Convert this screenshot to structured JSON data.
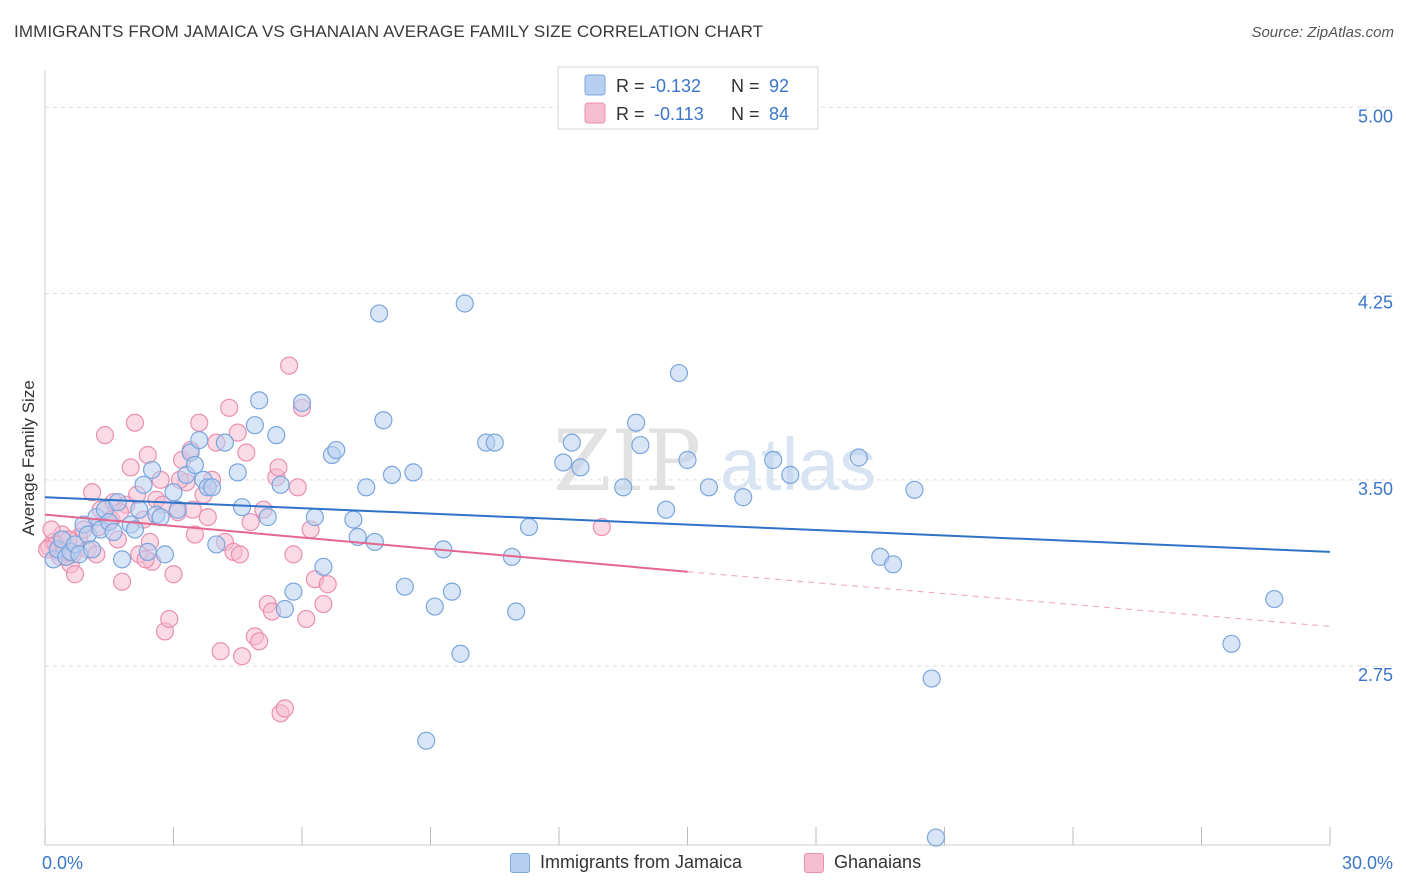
{
  "title": "IMMIGRANTS FROM JAMAICA VS GHANAIAN AVERAGE FAMILY SIZE CORRELATION CHART",
  "source": "Source: ZipAtlas.com",
  "watermark": {
    "zip": "ZIP",
    "atlas": "atlas"
  },
  "legend": {
    "rows": [
      {
        "r_label": "R =",
        "r_value": "-0.132",
        "n_label": "N =",
        "n_value": "92"
      },
      {
        "r_label": "R =",
        "r_value": "-0.113",
        "n_label": "N =",
        "n_value": "84"
      }
    ]
  },
  "colors": {
    "blue_fill": "#b8d0f0",
    "blue_stroke": "#7aa6dd",
    "blue_line": "#2f72c8",
    "pink_fill": "#f6bcd0",
    "pink_stroke": "#ea8fb0",
    "pink_line": "#e2668f",
    "axis_blue_text": "#3b76c9",
    "grid": "#dddddd"
  },
  "chart_data": {
    "type": "scatter",
    "title": "IMMIGRANTS FROM JAMAICA VS GHANAIAN AVERAGE FAMILY SIZE CORRELATION CHART",
    "xlabel": "",
    "ylabel": "Average Family Size",
    "xlim": [
      0,
      30
    ],
    "ylim": [
      2.03,
      5.15
    ],
    "x_tick_labels": [
      "0.0%",
      "30.0%"
    ],
    "y_ticks": [
      2.75,
      3.5,
      4.25,
      5.0
    ],
    "y_tick_labels": [
      "2.75",
      "3.50",
      "4.25",
      "5.00"
    ],
    "grid": true,
    "legend_position": "top-center",
    "series": [
      {
        "name": "Immigrants from Jamaica",
        "color": "#7aa6dd",
        "trend": {
          "x": [
            0,
            30
          ],
          "y": [
            3.43,
            3.21
          ]
        },
        "points": [
          [
            0.2,
            3.18
          ],
          [
            0.3,
            3.22
          ],
          [
            0.4,
            3.26
          ],
          [
            0.5,
            3.19
          ],
          [
            0.6,
            3.21
          ],
          [
            0.7,
            3.24
          ],
          [
            0.8,
            3.2
          ],
          [
            0.9,
            3.32
          ],
          [
            1.0,
            3.28
          ],
          [
            1.1,
            3.22
          ],
          [
            1.2,
            3.35
          ],
          [
            1.3,
            3.3
          ],
          [
            1.4,
            3.38
          ],
          [
            1.5,
            3.33
          ],
          [
            1.7,
            3.41
          ],
          [
            1.8,
            3.18
          ],
          [
            2.0,
            3.32
          ],
          [
            2.2,
            3.38
          ],
          [
            2.3,
            3.48
          ],
          [
            2.4,
            3.21
          ],
          [
            2.5,
            3.54
          ],
          [
            2.6,
            3.36
          ],
          [
            2.7,
            3.35
          ],
          [
            2.8,
            3.2
          ],
          [
            3.0,
            3.45
          ],
          [
            3.1,
            3.38
          ],
          [
            3.3,
            3.52
          ],
          [
            3.4,
            3.61
          ],
          [
            3.5,
            3.56
          ],
          [
            3.6,
            3.66
          ],
          [
            3.7,
            3.5
          ],
          [
            3.8,
            3.47
          ],
          [
            4.0,
            3.24
          ],
          [
            4.2,
            3.65
          ],
          [
            4.5,
            3.53
          ],
          [
            4.6,
            3.39
          ],
          [
            4.9,
            3.72
          ],
          [
            5.0,
            3.82
          ],
          [
            5.2,
            3.35
          ],
          [
            5.4,
            3.68
          ],
          [
            5.5,
            3.48
          ],
          [
            5.6,
            2.98
          ],
          [
            5.8,
            3.05
          ],
          [
            6.0,
            3.81
          ],
          [
            6.3,
            3.35
          ],
          [
            6.5,
            3.15
          ],
          [
            6.7,
            3.6
          ],
          [
            6.8,
            3.62
          ],
          [
            7.2,
            3.34
          ],
          [
            7.3,
            3.27
          ],
          [
            7.5,
            3.47
          ],
          [
            7.7,
            3.25
          ],
          [
            7.8,
            4.17
          ],
          [
            7.9,
            3.74
          ],
          [
            8.1,
            3.52
          ],
          [
            8.4,
            3.07
          ],
          [
            8.6,
            3.53
          ],
          [
            8.9,
            2.45
          ],
          [
            9.1,
            2.99
          ],
          [
            9.3,
            3.22
          ],
          [
            9.5,
            3.05
          ],
          [
            9.7,
            2.8
          ],
          [
            9.8,
            4.21
          ],
          [
            10.3,
            3.65
          ],
          [
            10.5,
            3.65
          ],
          [
            10.9,
            3.19
          ],
          [
            11.0,
            2.97
          ],
          [
            11.3,
            3.31
          ],
          [
            12.1,
            3.57
          ],
          [
            12.3,
            3.65
          ],
          [
            12.5,
            3.55
          ],
          [
            13.5,
            3.47
          ],
          [
            13.8,
            3.73
          ],
          [
            13.9,
            3.64
          ],
          [
            14.5,
            3.38
          ],
          [
            14.8,
            3.93
          ],
          [
            15.0,
            3.58
          ],
          [
            15.5,
            3.47
          ],
          [
            16.3,
            3.43
          ],
          [
            17.0,
            3.58
          ],
          [
            17.4,
            3.52
          ],
          [
            19.0,
            3.59
          ],
          [
            19.5,
            3.19
          ],
          [
            19.8,
            3.16
          ],
          [
            20.3,
            3.46
          ],
          [
            20.7,
            2.7
          ],
          [
            20.8,
            2.06
          ],
          [
            27.7,
            2.84
          ],
          [
            28.7,
            3.02
          ],
          [
            1.6,
            3.29
          ],
          [
            3.9,
            3.47
          ],
          [
            2.1,
            3.3
          ]
        ]
      },
      {
        "name": "Ghanaians",
        "color": "#ea8fb0",
        "trend": {
          "x": [
            0,
            15
          ],
          "y": [
            3.36,
            3.13
          ]
        },
        "trend_dashed": {
          "x": [
            15,
            30
          ],
          "y": [
            3.13,
            2.91
          ]
        },
        "points": [
          [
            0.1,
            3.23
          ],
          [
            0.2,
            3.25
          ],
          [
            0.3,
            3.21
          ],
          [
            0.4,
            3.28
          ],
          [
            0.5,
            3.19
          ],
          [
            0.6,
            3.16
          ],
          [
            0.7,
            3.12
          ],
          [
            0.8,
            3.27
          ],
          [
            0.9,
            3.3
          ],
          [
            1.0,
            3.22
          ],
          [
            1.1,
            3.45
          ],
          [
            1.2,
            3.2
          ],
          [
            1.3,
            3.38
          ],
          [
            1.4,
            3.68
          ],
          [
            1.5,
            3.33
          ],
          [
            1.6,
            3.41
          ],
          [
            1.7,
            3.26
          ],
          [
            1.8,
            3.09
          ],
          [
            1.9,
            3.4
          ],
          [
            2.0,
            3.55
          ],
          [
            2.1,
            3.73
          ],
          [
            2.2,
            3.2
          ],
          [
            2.3,
            3.34
          ],
          [
            2.4,
            3.6
          ],
          [
            2.5,
            3.17
          ],
          [
            2.6,
            3.42
          ],
          [
            2.7,
            3.5
          ],
          [
            2.8,
            2.89
          ],
          [
            2.9,
            2.94
          ],
          [
            3.0,
            3.12
          ],
          [
            3.1,
            3.37
          ],
          [
            3.2,
            3.58
          ],
          [
            3.3,
            3.49
          ],
          [
            3.4,
            3.62
          ],
          [
            3.5,
            3.28
          ],
          [
            3.6,
            3.73
          ],
          [
            3.7,
            3.44
          ],
          [
            3.8,
            3.35
          ],
          [
            3.9,
            3.5
          ],
          [
            4.0,
            3.65
          ],
          [
            4.1,
            2.81
          ],
          [
            4.2,
            3.25
          ],
          [
            4.3,
            3.79
          ],
          [
            4.4,
            3.21
          ],
          [
            4.5,
            3.69
          ],
          [
            4.6,
            2.79
          ],
          [
            4.7,
            3.61
          ],
          [
            4.8,
            3.33
          ],
          [
            4.9,
            2.87
          ],
          [
            5.0,
            2.85
          ],
          [
            5.1,
            3.38
          ],
          [
            5.2,
            3.0
          ],
          [
            5.3,
            2.97
          ],
          [
            5.4,
            3.51
          ],
          [
            5.5,
            2.56
          ],
          [
            5.6,
            2.58
          ],
          [
            5.7,
            3.96
          ],
          [
            5.8,
            3.2
          ],
          [
            5.9,
            3.47
          ],
          [
            6.0,
            3.79
          ],
          [
            6.1,
            2.94
          ],
          [
            6.2,
            3.3
          ],
          [
            6.3,
            3.1
          ],
          [
            6.5,
            3.0
          ],
          [
            6.6,
            3.08
          ],
          [
            0.25,
            3.24
          ],
          [
            0.35,
            3.19
          ],
          [
            0.45,
            3.21
          ],
          [
            0.55,
            3.26
          ],
          [
            0.65,
            3.2
          ],
          [
            1.25,
            3.31
          ],
          [
            1.55,
            3.34
          ],
          [
            1.75,
            3.37
          ],
          [
            2.15,
            3.44
          ],
          [
            2.45,
            3.25
          ],
          [
            2.75,
            3.4
          ],
          [
            3.15,
            3.5
          ],
          [
            3.45,
            3.38
          ],
          [
            4.55,
            3.2
          ],
          [
            5.45,
            3.55
          ],
          [
            13.0,
            3.31
          ],
          [
            0.15,
            3.3
          ],
          [
            0.05,
            3.22
          ],
          [
            2.35,
            3.18
          ]
        ]
      }
    ]
  }
}
